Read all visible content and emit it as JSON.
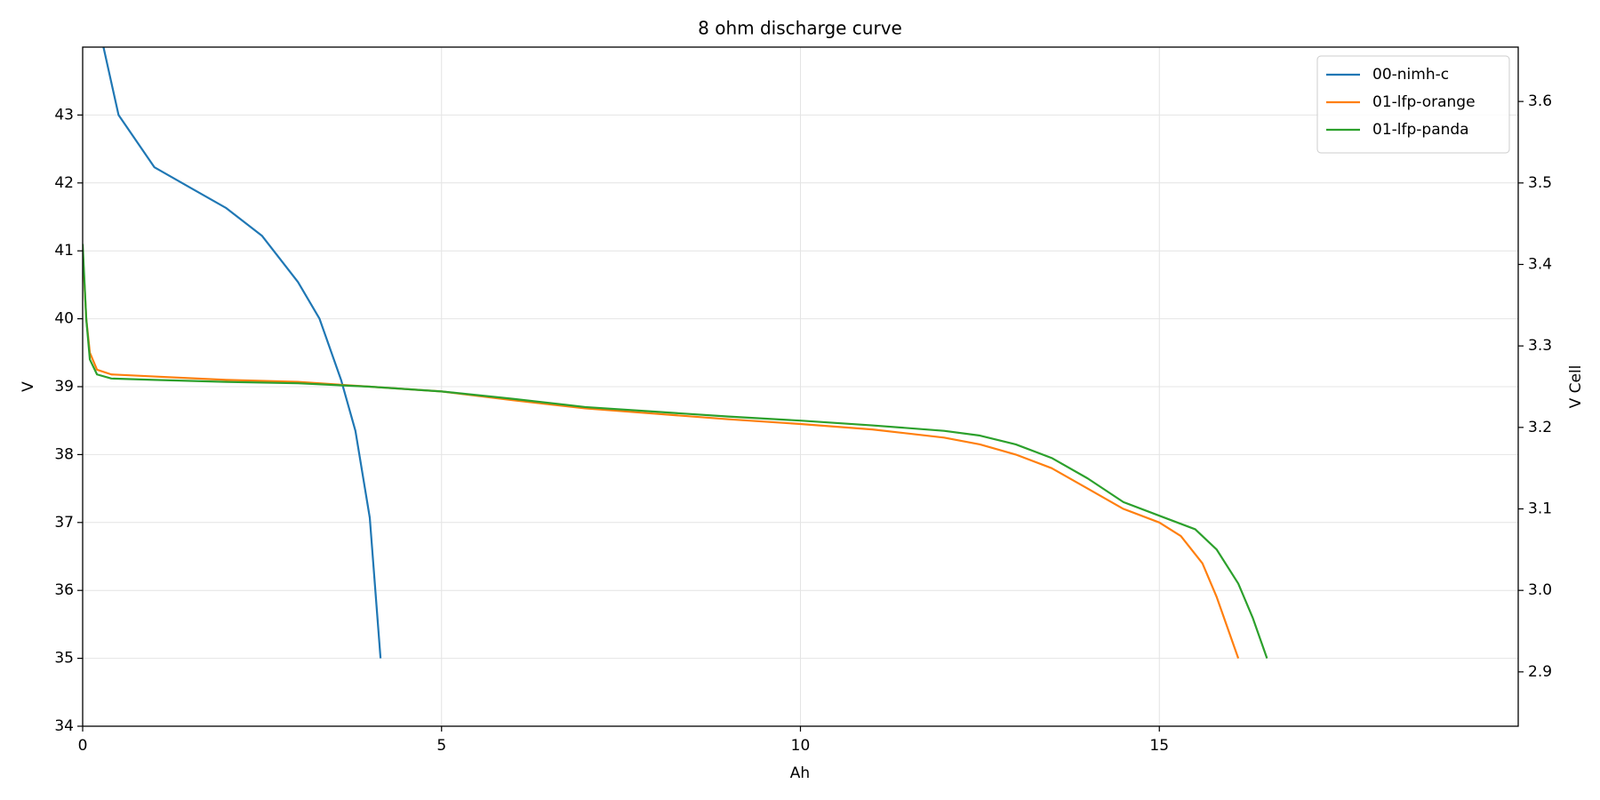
{
  "chart_data": {
    "type": "line",
    "title": "8 ohm discharge curve",
    "xlabel": "Ah",
    "ylabel": "V",
    "y2label": "V Cell",
    "xlim": [
      0,
      20
    ],
    "xticks": [
      0,
      5,
      10,
      15
    ],
    "ylim": [
      34,
      44
    ],
    "yticks": [
      34,
      35,
      36,
      37,
      38,
      39,
      40,
      41,
      42,
      43
    ],
    "y2lim": [
      2.8333,
      3.6667
    ],
    "y2ticks": [
      2.9,
      {
        "value": 3,
        "label": "3.0"
      },
      3.1,
      3.2,
      3.3,
      3.4,
      3.5,
      3.6
    ],
    "grid": true,
    "legend": "upper right",
    "series": [
      {
        "name": "00-nimh-c",
        "color": "#1f77b4",
        "x": [
          0.29,
          0.5,
          1.0,
          1.5,
          2.0,
          2.5,
          3.0,
          3.3,
          3.6,
          3.8,
          4.0,
          4.15
        ],
        "values": [
          44,
          43.0,
          42.23,
          41.93,
          41.63,
          41.22,
          40.54,
          40.0,
          39.1,
          38.35,
          37.07,
          35
        ]
      },
      {
        "name": "01-lfp-orange",
        "color": "#ff7f0e",
        "x": [
          0,
          0.05,
          0.1,
          0.2,
          0.4,
          1,
          2,
          3,
          4,
          5,
          6,
          7,
          8,
          9,
          10,
          11,
          12,
          12.5,
          13,
          13.5,
          14,
          14.5,
          15,
          15.3,
          15.6,
          15.8,
          16.1
        ],
        "values": [
          41,
          40,
          39.5,
          39.25,
          39.18,
          39.15,
          39.1,
          39.07,
          39.0,
          38.93,
          38.8,
          38.68,
          38.6,
          38.52,
          38.45,
          38.37,
          38.25,
          38.15,
          38.0,
          37.8,
          37.5,
          37.2,
          37.0,
          36.8,
          36.4,
          35.9,
          35.0
        ]
      },
      {
        "name": "01-lfp-panda",
        "color": "#2ca02c",
        "x": [
          0,
          0.05,
          0.1,
          0.2,
          0.4,
          1,
          2,
          3,
          4,
          5,
          6,
          7,
          8,
          9,
          10,
          11,
          12,
          12.5,
          13,
          13.5,
          14,
          14.5,
          15,
          15.5,
          15.8,
          16.1,
          16.3,
          16.5
        ],
        "values": [
          41.1,
          40.0,
          39.4,
          39.18,
          39.12,
          39.1,
          39.07,
          39.05,
          39.0,
          38.93,
          38.82,
          38.7,
          38.63,
          38.56,
          38.5,
          38.43,
          38.35,
          38.28,
          38.15,
          37.95,
          37.65,
          37.3,
          37.1,
          36.9,
          36.6,
          36.1,
          35.6,
          35.0
        ]
      }
    ]
  }
}
